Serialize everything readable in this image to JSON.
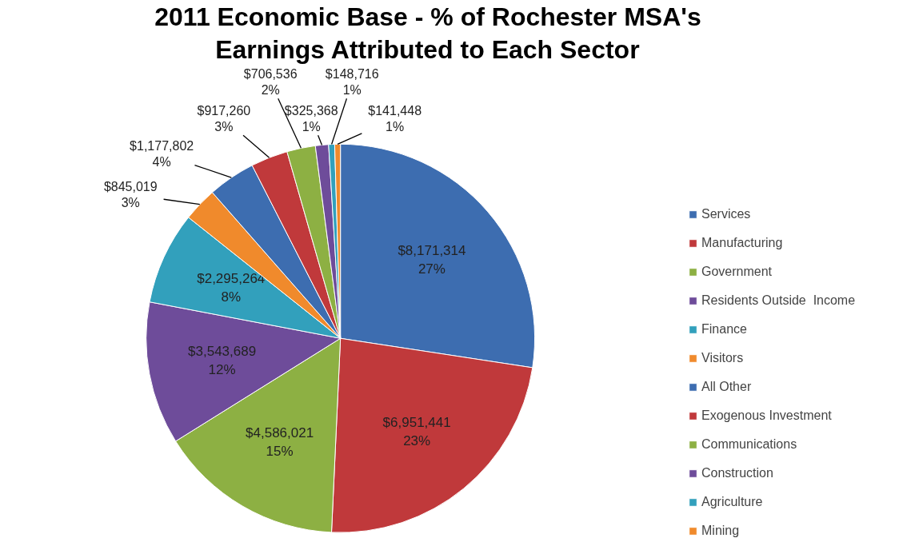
{
  "chart_data": {
    "type": "pie",
    "title": "2011 Economic Base - % of Rochester MSA's\nEarnings Attributed to Each Sector",
    "categories": [
      "Services",
      "Manufacturing",
      "Government",
      "Residents Outside  Income",
      "Finance",
      "Visitors",
      "All Other",
      "Exogenous Investment",
      "Communications",
      "Construction",
      "Agriculture",
      "Mining"
    ],
    "values": [
      8171314,
      6951441,
      4586021,
      3543689,
      2295264,
      845019,
      1177802,
      917260,
      706536,
      325368,
      148716,
      141448
    ],
    "value_labels": [
      "$8,171,314\n27%",
      "$6,951,441\n23%",
      "$4,586,021\n15%",
      "$3,543,689\n12%",
      "$2,295,264\n8%",
      "$845,019\n3%",
      "$1,177,802\n4%",
      "$917,260\n3%",
      "$706,536\n2%",
      "$325,368\n1%",
      "$148,716\n1%",
      "$141,448\n1%"
    ],
    "colors": [
      "#3d6db0",
      "#c0393b",
      "#8db043",
      "#6e4c9a",
      "#32a0bc",
      "#f08a2c",
      "#3d6db0",
      "#c0393b",
      "#8db043",
      "#6e4c9a",
      "#32a0bc",
      "#f08a2c"
    ],
    "legend": "right"
  }
}
